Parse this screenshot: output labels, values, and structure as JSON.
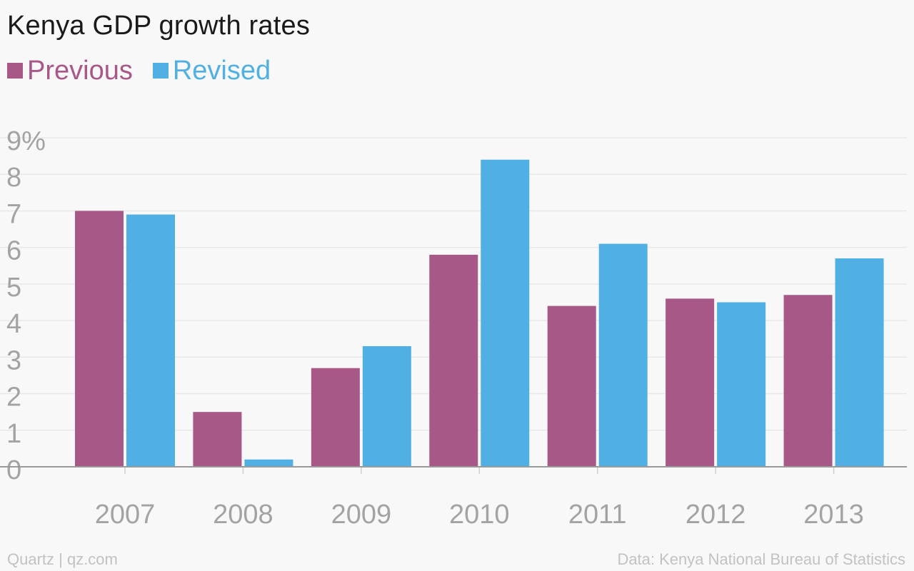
{
  "header": {
    "title": "Kenya GDP growth rates"
  },
  "legend": [
    {
      "label": "Previous",
      "color": "#a85887"
    },
    {
      "label": "Revised",
      "color": "#51b0e3"
    }
  ],
  "footer": {
    "source_left": "Quartz | qz.com",
    "source_right": "Data: Kenya National Bureau of Statistics"
  },
  "chart_data": {
    "type": "bar",
    "title": "Kenya GDP growth rates",
    "categories": [
      "2007",
      "2008",
      "2009",
      "2010",
      "2011",
      "2012",
      "2013"
    ],
    "series": [
      {
        "name": "Previous",
        "color": "#a85887",
        "values": [
          7.0,
          1.5,
          2.7,
          5.8,
          4.4,
          4.6,
          4.7
        ]
      },
      {
        "name": "Revised",
        "color": "#51b0e3",
        "values": [
          6.9,
          0.2,
          3.3,
          8.4,
          6.1,
          4.5,
          5.7
        ]
      }
    ],
    "ylim": [
      0,
      9
    ],
    "yticks": [
      "0",
      "1",
      "2",
      "3",
      "4",
      "5",
      "6",
      "7",
      "8",
      "9%"
    ],
    "grid": true,
    "legend_position": "top-left",
    "colors": {
      "background": "#f8f8f8",
      "grid": "#e8e8e8",
      "axis": "#9a9a9a",
      "tick_text": "#a3a3a3"
    }
  }
}
